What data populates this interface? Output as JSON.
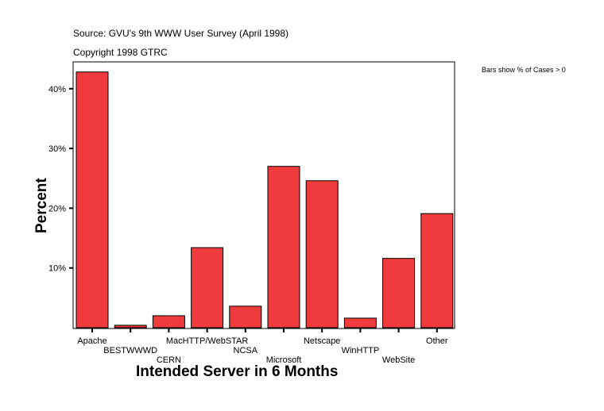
{
  "header": {
    "source": "Source: GVU's 9th WWW User Survey (April 1998)",
    "copyright": "Copyright 1998 GTRC",
    "note": "Bars show % of Cases > 0"
  },
  "chart_data": {
    "type": "bar",
    "title": "",
    "xlabel": "Intended Server in 6 Months",
    "ylabel": "Percent",
    "categories": [
      "Apache",
      "BESTWWWD",
      "CERN",
      "MacHTTP/WebSTAR",
      "NCSA",
      "Microsoft",
      "Netscape",
      "WinHTTP",
      "WebSite",
      "Other"
    ],
    "values": [
      42.8,
      0.4,
      2.0,
      13.4,
      3.6,
      27.0,
      24.6,
      1.6,
      11.6,
      19.1
    ],
    "ylim": [
      0,
      44.5
    ],
    "yticks": [
      10,
      20,
      30,
      40
    ],
    "ytick_labels": [
      "10%",
      "20%",
      "30%",
      "40%"
    ],
    "grid": false,
    "bar_color": "#ef3b3b"
  }
}
